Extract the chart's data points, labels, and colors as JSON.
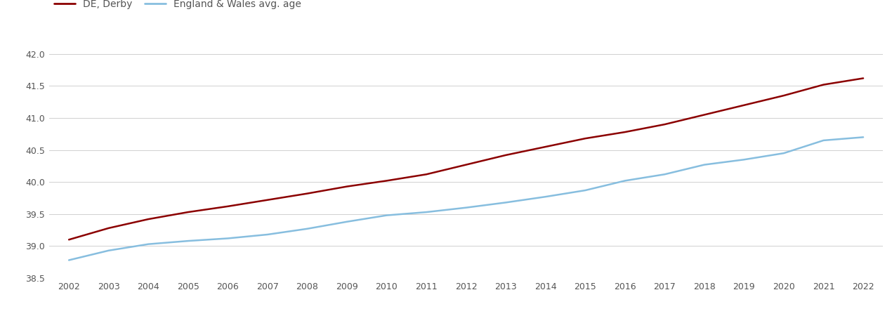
{
  "years": [
    2002,
    2003,
    2004,
    2005,
    2006,
    2007,
    2008,
    2009,
    2010,
    2011,
    2012,
    2013,
    2014,
    2015,
    2016,
    2017,
    2018,
    2019,
    2020,
    2021,
    2022
  ],
  "derby": [
    39.1,
    39.28,
    39.42,
    39.53,
    39.62,
    39.72,
    39.82,
    39.93,
    40.02,
    40.12,
    40.27,
    40.42,
    40.55,
    40.68,
    40.78,
    40.9,
    41.05,
    41.2,
    41.35,
    41.52,
    41.62
  ],
  "england_wales": [
    38.78,
    38.93,
    39.03,
    39.08,
    39.12,
    39.18,
    39.27,
    39.38,
    39.48,
    39.53,
    39.6,
    39.68,
    39.77,
    39.87,
    40.02,
    40.12,
    40.27,
    40.35,
    40.45,
    40.65,
    40.7
  ],
  "derby_color": "#8B0000",
  "ew_color": "#87BEDF",
  "background_color": "#ffffff",
  "grid_color": "#d0d0d0",
  "legend_derby": "DE, Derby",
  "legend_ew": "England & Wales avg. age",
  "ylim_min": 38.5,
  "ylim_max": 42.25,
  "yticks": [
    38.5,
    39.0,
    39.5,
    40.0,
    40.5,
    41.0,
    41.5,
    42.0
  ],
  "ytick_labels": [
    "38.5",
    "39.0",
    "39.5",
    "40.0",
    "40.5",
    "41.0",
    "41.5",
    "42.0"
  ],
  "line_width": 1.8,
  "text_color": "#555555",
  "tick_fontsize": 9,
  "legend_fontsize": 10
}
